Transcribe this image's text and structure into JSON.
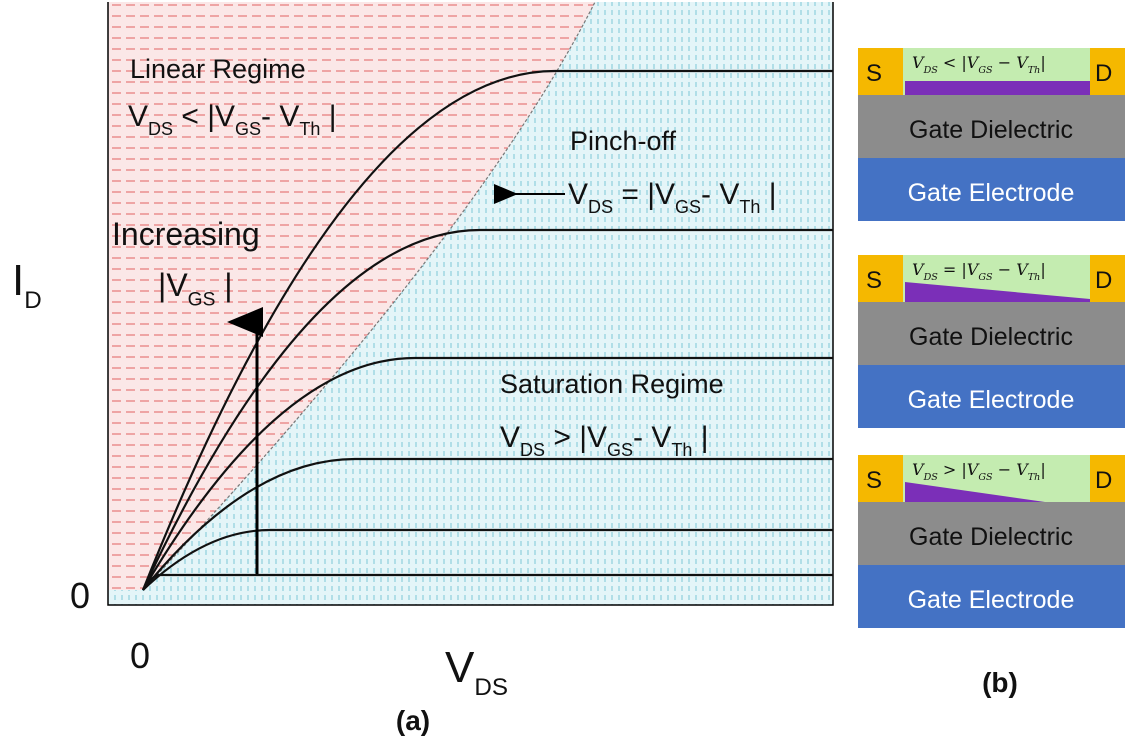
{
  "panel_a": {
    "y_axis_label": [
      "I",
      "D"
    ],
    "x_axis_label": [
      "V",
      "DS"
    ],
    "origin_x": "0",
    "origin_y": "0",
    "linear_regime": {
      "title": "Linear Regime",
      "condition": [
        "V",
        "DS",
        " < |V",
        "GS",
        "- V",
        "Th",
        " |"
      ]
    },
    "pinch_off": {
      "title": "Pinch-off",
      "condition": [
        "V",
        "DS",
        " = |V",
        "GS",
        "- V",
        "Th",
        " |"
      ]
    },
    "saturation_regime": {
      "title": "Saturation Regime",
      "condition": [
        "V",
        "DS",
        " > |V",
        "GS",
        "- V",
        "Th",
        " |"
      ]
    },
    "increasing": {
      "title": "Increasing",
      "label": [
        "|V",
        "GS",
        " |"
      ]
    },
    "caption": "(a)"
  },
  "panel_b": {
    "caption": "(b)",
    "devices": [
      {
        "source": "S",
        "drain": "D",
        "condition": [
          "V",
          "DS",
          " < |V",
          "GS",
          " − V",
          "Th",
          "|"
        ],
        "dielectric": "Gate Dielectric",
        "electrode": "Gate Electrode"
      },
      {
        "source": "S",
        "drain": "D",
        "condition": [
          "V",
          "DS",
          " = |V",
          "GS",
          " − V",
          "Th",
          "|"
        ],
        "dielectric": "Gate Dielectric",
        "electrode": "Gate Electrode"
      },
      {
        "source": "S",
        "drain": "D",
        "condition": [
          "V",
          "DS",
          " > |V",
          "GS",
          " − V",
          "Th",
          "|"
        ],
        "dielectric": "Gate Dielectric",
        "electrode": "Gate Electrode"
      }
    ]
  }
}
